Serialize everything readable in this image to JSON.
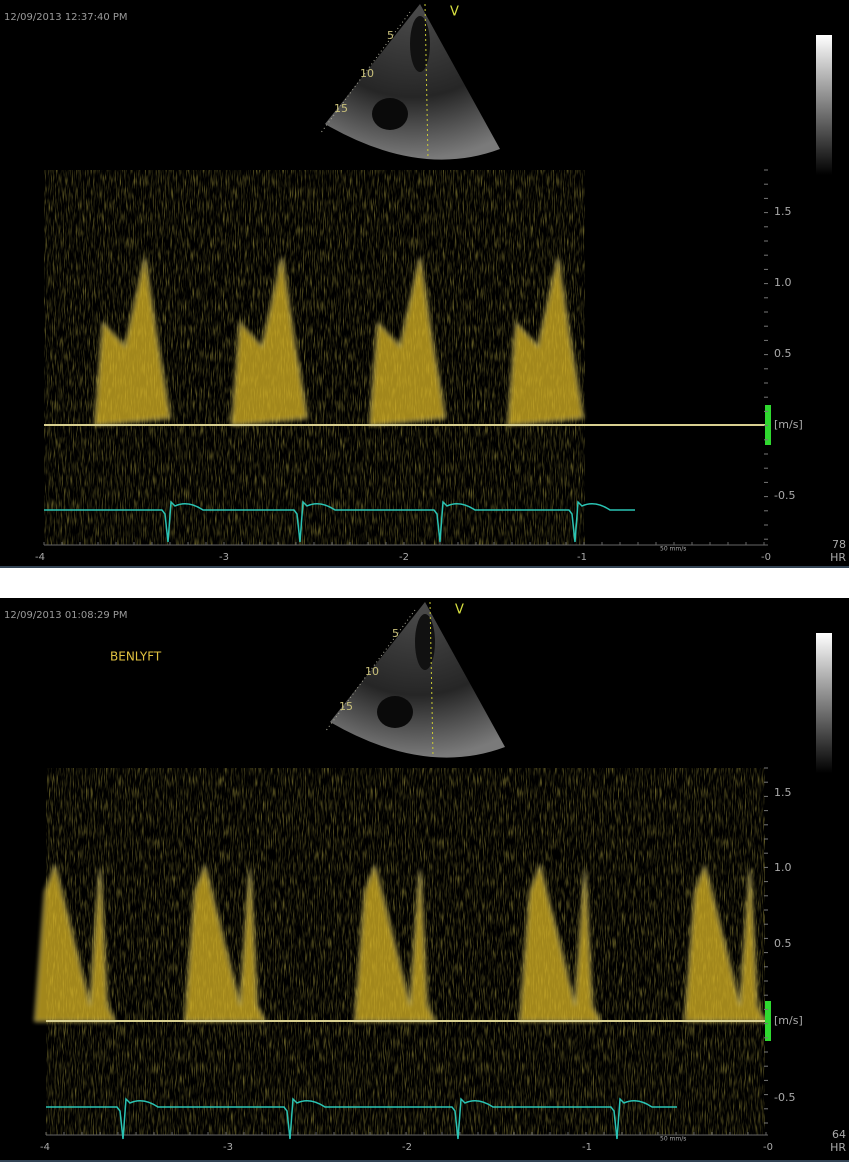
{
  "panels": [
    {
      "timestamp": "12/09/2013 12:37:40 PM",
      "view_marker": "V",
      "depth_labels": [
        "5",
        "10",
        "15"
      ],
      "velocity_labels": [
        "1.5",
        "1.0",
        "0.5",
        "[m/s]",
        "-0.5"
      ],
      "time_labels": [
        "-4",
        "-3",
        "-2",
        "-1",
        "-0"
      ],
      "sweep_speed": "50 mm/s",
      "heart_rate": "78",
      "heart_rate_label": "HR"
    },
    {
      "timestamp": "12/09/2013 01:08:29 PM",
      "annotation": "BENLYFT",
      "view_marker": "V",
      "depth_labels": [
        "5",
        "10",
        "15"
      ],
      "velocity_labels": [
        "1.5",
        "1.0",
        "0.5",
        "[m/s]",
        "-0.5"
      ],
      "time_labels": [
        "-4",
        "-3",
        "-2",
        "-1",
        "-0"
      ],
      "sweep_speed": "50 mm/s",
      "heart_rate": "64",
      "heart_rate_label": "HR"
    }
  ]
}
